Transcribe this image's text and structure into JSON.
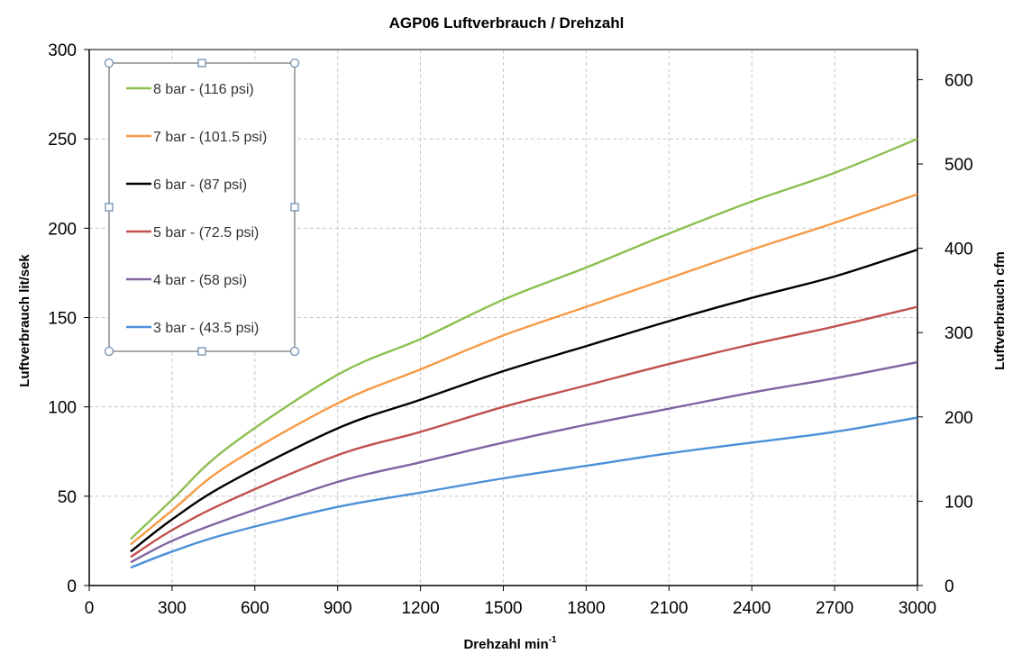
{
  "chart_data": {
    "type": "line",
    "title": "AGP06  Luftverbrauch / Drehzahl",
    "xlabel": "Drehzahl  min",
    "xlabel_superscript": "-1",
    "ylabel": "Luftverbrauch  lit/sek",
    "y2label": "Luftverbrauch  cfm",
    "xlim": [
      0,
      3000
    ],
    "ylim": [
      0,
      300
    ],
    "y2lim": [
      0,
      635.7
    ],
    "xticks": [
      0,
      300,
      600,
      900,
      1200,
      1500,
      1800,
      2100,
      2400,
      2700,
      3000
    ],
    "yticks": [
      0,
      50,
      100,
      150,
      200,
      250,
      300
    ],
    "y2ticks": [
      0,
      100,
      200,
      300,
      400,
      500,
      600
    ],
    "grid": true,
    "legend_position": "top-left",
    "x": [
      150,
      300,
      500,
      900,
      1200,
      1500,
      1800,
      2100,
      2400,
      2700,
      3000
    ],
    "series": [
      {
        "name": "8 bar - (116 psi)",
        "color": "#8cbf4f",
        "values": [
          26,
          48,
          77,
          118,
          138,
          160,
          178,
          197,
          215,
          231,
          250
        ]
      },
      {
        "name": "7 bar - (101.5 psi)",
        "color": "#f79a46",
        "values": [
          23,
          42,
          67,
          102,
          121,
          140,
          156,
          172,
          188,
          203,
          219
        ]
      },
      {
        "name": "6 bar - (87 psi)",
        "color": "#000000",
        "values": [
          19,
          37,
          57,
          88,
          104,
          120,
          134,
          148,
          161,
          173,
          188
        ]
      },
      {
        "name": "5 bar - (72.5 psi)",
        "color": "#c0504d",
        "values": [
          16,
          31,
          47,
          73,
          86,
          100,
          112,
          124,
          135,
          145,
          156
        ]
      },
      {
        "name": "4 bar - (58 psi)",
        "color": "#8064a2",
        "values": [
          13,
          25,
          37,
          58,
          69,
          80,
          90,
          99,
          108,
          116,
          125
        ]
      },
      {
        "name": "3 bar - (43.5 psi)",
        "color": "#4a90d9",
        "values": [
          10,
          19,
          29,
          44,
          52,
          60,
          67,
          74,
          80,
          86,
          94
        ]
      }
    ]
  }
}
